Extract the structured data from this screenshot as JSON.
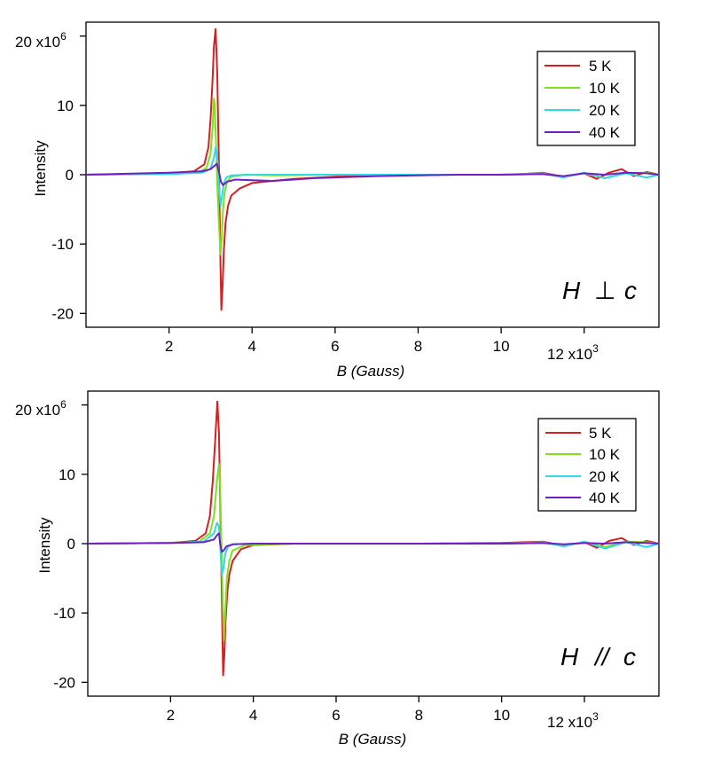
{
  "chart_data": [
    {
      "type": "line",
      "xlabel": "B (Gauss)",
      "ylabel": "Intensity",
      "xlim": [
        0,
        13.8
      ],
      "ylim": [
        -22,
        22
      ],
      "x_unit_label": "x10",
      "x_unit_exp": "3",
      "y_unit_label": "x10",
      "y_unit_exp": "6",
      "xticks": [
        2,
        4,
        6,
        8,
        10,
        12
      ],
      "xtick_labels": [
        "2",
        "4",
        "6",
        "8",
        "10",
        "12"
      ],
      "yticks": [
        -20,
        -10,
        0,
        10,
        20
      ],
      "ytick_labels": [
        "-20",
        "-10",
        "0",
        "10",
        "20"
      ],
      "annotation": {
        "H": "H",
        "symbol": "⊥",
        "c": "c"
      },
      "legend_position": "top-right",
      "grid": false,
      "series": [
        {
          "name": "5 K",
          "color": "#d42020",
          "x": [
            0,
            2.0,
            2.6,
            2.85,
            2.95,
            3.0,
            3.05,
            3.08,
            3.12,
            3.16,
            3.2,
            3.23,
            3.26,
            3.29,
            3.32,
            3.36,
            3.42,
            3.5,
            3.7,
            4.0,
            4.5,
            5.0,
            6.0,
            7.0,
            8.0,
            9.0,
            10.0,
            10.5,
            11.0,
            11.5,
            12.0,
            12.3,
            12.6,
            12.9,
            13.2,
            13.5,
            13.8
          ],
          "y": [
            0,
            0.2,
            0.5,
            1.5,
            4,
            8,
            14,
            18.5,
            21,
            15,
            2,
            -10,
            -19.5,
            -16,
            -11,
            -7,
            -4.5,
            -3,
            -2,
            -1.2,
            -0.9,
            -0.6,
            -0.3,
            -0.1,
            0,
            0,
            0,
            0.1,
            0.3,
            -0.3,
            0.2,
            -0.6,
            0.3,
            0.8,
            -0.2,
            0.4,
            0
          ]
        },
        {
          "name": "10 K",
          "color": "#80e020",
          "x": [
            0,
            2.0,
            2.7,
            2.9,
            3.0,
            3.05,
            3.08,
            3.1,
            3.13,
            3.16,
            3.2,
            3.24,
            3.27,
            3.3,
            3.34,
            3.4,
            3.5,
            3.8,
            4.5,
            6.0,
            8.0,
            10.0,
            11.0,
            11.5,
            12.0,
            12.5,
            13.0,
            13.5,
            13.8
          ],
          "y": [
            0,
            0.1,
            0.3,
            1.0,
            3.0,
            7,
            11,
            10,
            5,
            -1,
            -7,
            -11.5,
            -9,
            -5,
            -2.5,
            -1,
            -0.3,
            0,
            -0.1,
            0,
            0,
            0,
            0.1,
            -0.3,
            0.2,
            -0.5,
            0.2,
            0.3,
            0
          ]
        },
        {
          "name": "20 K",
          "color": "#30d8e8",
          "x": [
            0,
            2.0,
            2.8,
            3.0,
            3.08,
            3.13,
            3.17,
            3.2,
            3.24,
            3.28,
            3.32,
            3.38,
            3.5,
            4.0,
            6.0,
            8.0,
            10.0,
            11.0,
            11.5,
            12.0,
            12.5,
            13.0,
            13.5,
            13.8
          ],
          "y": [
            0,
            0.1,
            0.3,
            0.8,
            2.5,
            4.0,
            2.0,
            -1.5,
            -4.5,
            -3,
            -1.2,
            -0.4,
            -0.1,
            0,
            0,
            0,
            0,
            0.2,
            -0.4,
            0.3,
            -0.5,
            0.2,
            -0.4,
            0
          ]
        },
        {
          "name": "40 K",
          "color": "#7020c0",
          "x": [
            0,
            2.0,
            2.8,
            3.0,
            3.1,
            3.15,
            3.2,
            3.25,
            3.3,
            3.4,
            3.6,
            4.0,
            4.5,
            5.0,
            5.5,
            6.0,
            7.0,
            8.0,
            9.0,
            10.0,
            11.0,
            11.5,
            12.0,
            12.5,
            13.0,
            13.5,
            13.8
          ],
          "y": [
            0,
            0.3,
            0.5,
            0.8,
            1.3,
            1.6,
            0.5,
            -1.0,
            -1.5,
            -1.0,
            -0.7,
            -0.8,
            -0.9,
            -0.7,
            -0.5,
            -0.4,
            -0.2,
            -0.1,
            0,
            0,
            0.1,
            -0.2,
            0.2,
            0,
            0.3,
            0.2,
            0
          ]
        }
      ]
    },
    {
      "type": "line",
      "xlabel": "B (Gauss)",
      "ylabel": "Intensity",
      "xlim": [
        0,
        13.8
      ],
      "ylim": [
        -22,
        22
      ],
      "x_unit_label": "x10",
      "x_unit_exp": "3",
      "y_unit_label": "x10",
      "y_unit_exp": "6",
      "xticks": [
        2,
        4,
        6,
        8,
        10,
        12
      ],
      "xtick_labels": [
        "2",
        "4",
        "6",
        "8",
        "10",
        "12"
      ],
      "yticks": [
        -20,
        -10,
        0,
        10,
        20
      ],
      "ytick_labels": [
        "-20",
        "-10",
        "0",
        "10",
        "20"
      ],
      "annotation": {
        "H": "H",
        "symbol": "//",
        "c": "c"
      },
      "legend_position": "top-right",
      "grid": false,
      "series": [
        {
          "name": "5 K",
          "color": "#d42020",
          "x": [
            0,
            2.0,
            2.6,
            2.85,
            2.95,
            3.02,
            3.08,
            3.13,
            3.17,
            3.2,
            3.24,
            3.27,
            3.3,
            3.33,
            3.37,
            3.42,
            3.5,
            3.7,
            4.0,
            5.0,
            6.0,
            8.0,
            10.0,
            11.0,
            11.5,
            12.0,
            12.3,
            12.6,
            12.9,
            13.2,
            13.5,
            13.8
          ],
          "y": [
            0,
            0.1,
            0.4,
            1.5,
            4,
            9,
            15,
            20.5,
            16,
            6,
            -8,
            -19,
            -16,
            -11,
            -7,
            -4.5,
            -2.5,
            -0.8,
            -0.2,
            0,
            0,
            0,
            0.1,
            0.3,
            -0.3,
            0.2,
            -0.6,
            0.4,
            0.8,
            -0.2,
            0.4,
            0
          ]
        },
        {
          "name": "10 K",
          "color": "#80e020",
          "x": [
            0,
            2.0,
            2.7,
            2.95,
            3.05,
            3.12,
            3.17,
            3.2,
            3.23,
            3.26,
            3.29,
            3.32,
            3.36,
            3.42,
            3.5,
            3.8,
            5.0,
            8.0,
            10.0,
            11.0,
            11.5,
            12.0,
            12.5,
            13.0,
            13.5,
            13.8
          ],
          "y": [
            0,
            0.1,
            0.3,
            1.5,
            4,
            9,
            11.5,
            8,
            0,
            -8,
            -14,
            -10,
            -5,
            -2.5,
            -1,
            -0.2,
            0,
            0,
            0,
            0.1,
            -0.3,
            0.2,
            -0.5,
            0.3,
            0.2,
            0
          ]
        },
        {
          "name": "20 K",
          "color": "#30d8e8",
          "x": [
            0,
            2.0,
            2.8,
            3.05,
            3.12,
            3.17,
            3.2,
            3.24,
            3.28,
            3.32,
            3.38,
            3.5,
            4.0,
            8.0,
            10.0,
            11.0,
            11.5,
            12.0,
            12.5,
            13.0,
            13.5,
            13.8
          ],
          "y": [
            0,
            0.1,
            0.3,
            1.5,
            3.0,
            2.5,
            -0.5,
            -4.5,
            -3.5,
            -1.5,
            -0.5,
            -0.1,
            0,
            0,
            0,
            0.2,
            -0.4,
            0.3,
            -0.7,
            0.2,
            -0.5,
            0
          ]
        },
        {
          "name": "40 K",
          "color": "#7020c0",
          "x": [
            0,
            2.0,
            2.8,
            3.05,
            3.12,
            3.17,
            3.2,
            3.24,
            3.28,
            3.35,
            3.5,
            4.0,
            6.0,
            8.0,
            10.0,
            11.0,
            11.5,
            12.0,
            12.5,
            13.0,
            13.5,
            13.8
          ],
          "y": [
            0,
            0.1,
            0.2,
            0.6,
            1.2,
            1.5,
            0,
            -1.2,
            -1.0,
            -0.4,
            -0.1,
            0,
            0,
            0,
            0,
            0.1,
            -0.1,
            0.1,
            0,
            0.2,
            0.1,
            0
          ]
        }
      ]
    }
  ]
}
